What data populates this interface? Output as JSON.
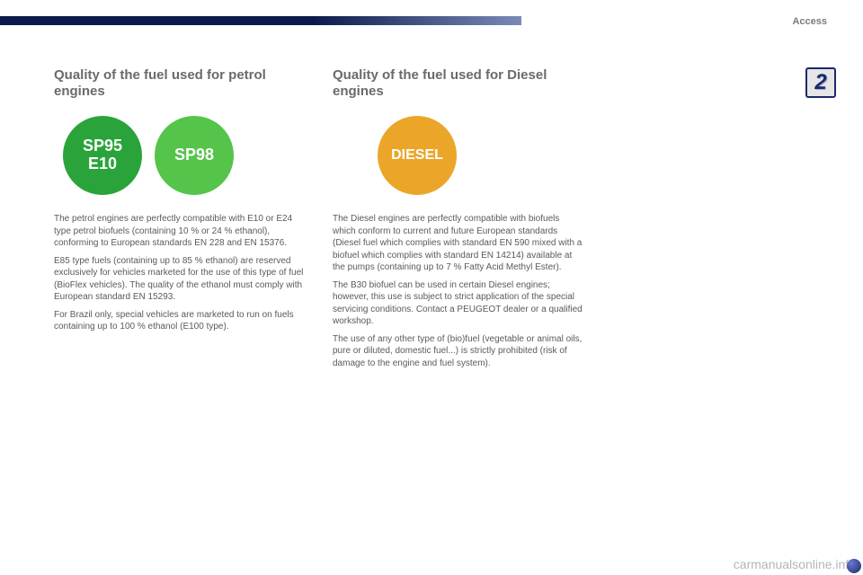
{
  "header": {
    "section_label": "Access",
    "page_tab": "2"
  },
  "colors": {
    "petrol_dark": "#2aa43a",
    "petrol_light": "#55c44a",
    "diesel": "#eba62a",
    "bar_dark": "#0a1a4a",
    "bar_light": "#7a8ab8"
  },
  "petrol": {
    "title": "Quality of the fuel used for petrol engines",
    "badge1_line1": "SP95",
    "badge1_line2": "E10",
    "badge2_line1": "SP98",
    "body": "The petrol engines are perfectly compatible with E10 or E24 type petrol biofuels (containing 10 % or 24 % ethanol), conforming to European standards EN 228 and EN 15376.\nE85 type fuels (containing up to 85 % ethanol) are reserved exclusively for vehicles marketed for the use of this type of fuel (BioFlex vehicles). The quality of the ethanol must comply with European standard EN 15293.\nFor Brazil only, special vehicles are marketed to run on fuels containing up to 100 % ethanol (E100 type)."
  },
  "diesel": {
    "title": "Quality of the fuel used for Diesel engines",
    "badge_line1": "DIESEL",
    "body": "The Diesel engines are perfectly compatible with biofuels which conform to current and future European standards (Diesel fuel which complies with standard EN 590 mixed with a biofuel which complies with standard EN 14214) available at the pumps (containing up to 7 % Fatty Acid Methyl Ester).\nThe B30 biofuel can be used in certain Diesel engines; however, this use is subject to strict application of the special servicing conditions. Contact a PEUGEOT dealer or a qualified workshop.\nThe use of any other type of (bio)fuel (vegetable or animal oils, pure or diluted, domestic fuel...) is strictly prohibited (risk of damage to the engine and fuel system)."
  },
  "watermark": "carmanualsonline.info"
}
